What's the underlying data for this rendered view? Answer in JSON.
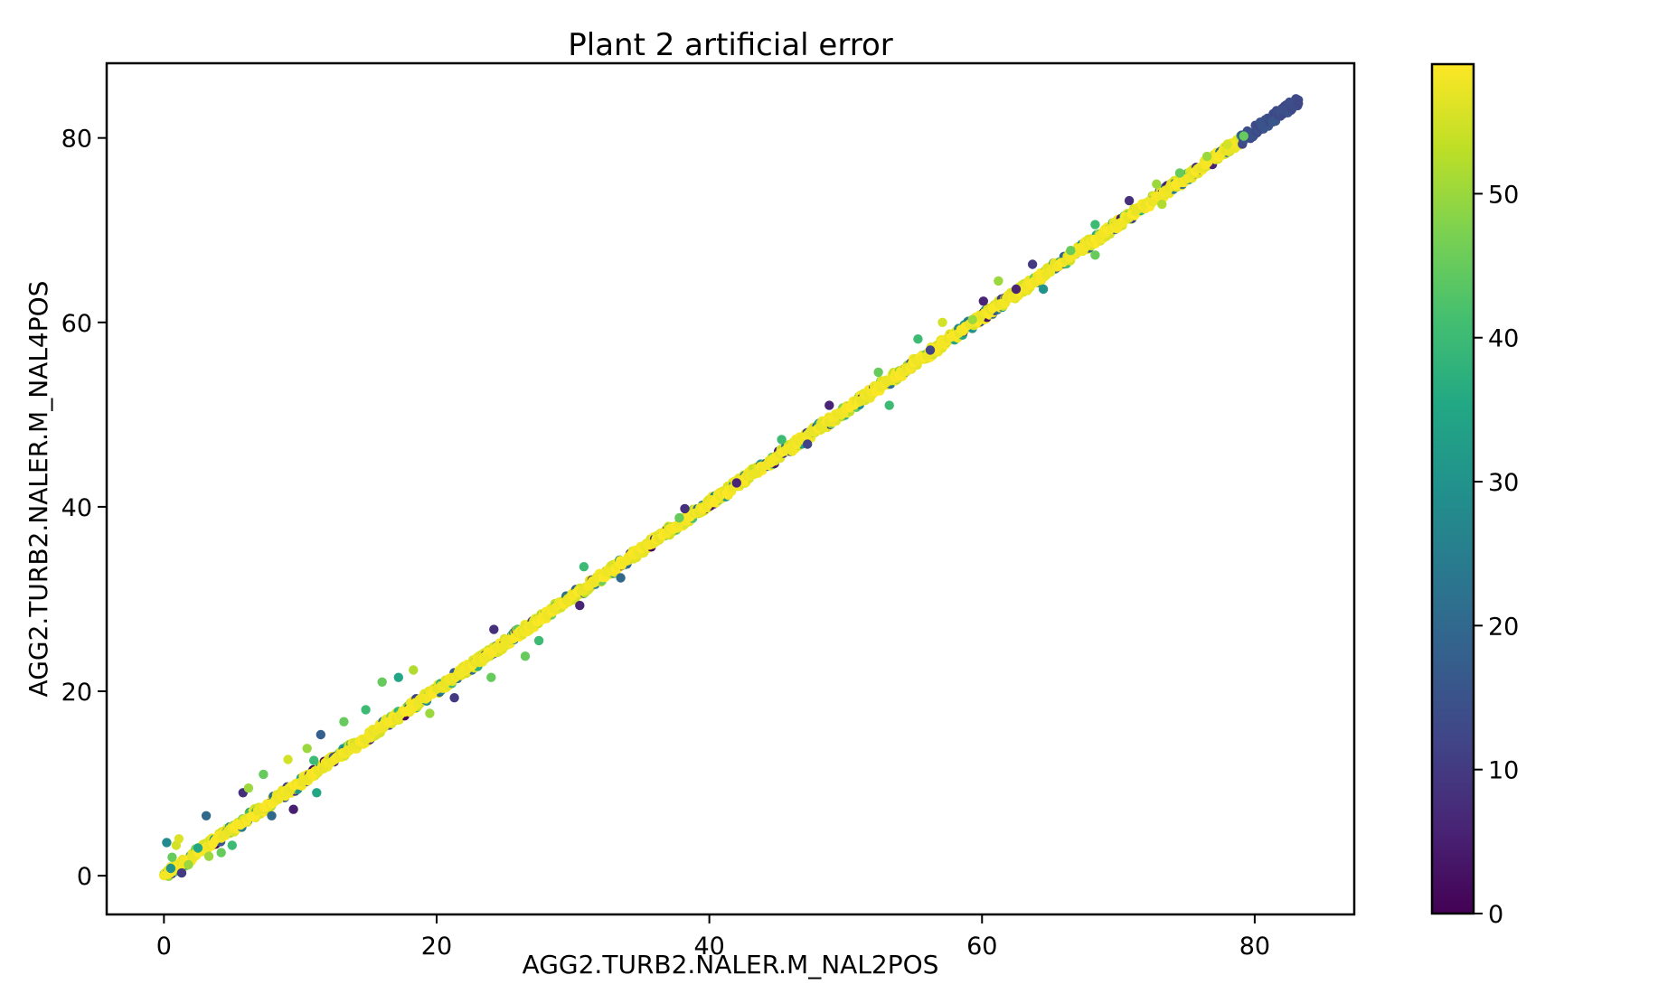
{
  "chart_data": {
    "type": "scatter",
    "title": "Plant 2 artificial error",
    "xlabel": "AGG2.TURB2.NALER.M_NAL2POS",
    "ylabel": "AGG2.TURB2.NALER.M_NAL4POS",
    "xlim": [
      -4.2,
      87.3
    ],
    "ylim": [
      -4.2,
      88.1
    ],
    "xticks": [
      0,
      20,
      40,
      60,
      80
    ],
    "yticks": [
      0,
      20,
      40,
      60,
      80
    ],
    "x_tick_labels": [
      "0",
      "20",
      "40",
      "60",
      "80"
    ],
    "y_tick_labels": [
      "0",
      "20",
      "40",
      "60",
      "80"
    ],
    "grid": false,
    "colormap": "viridis",
    "colorbar": {
      "range": [
        0,
        59
      ],
      "ticks": [
        0,
        10,
        20,
        30,
        40,
        50
      ],
      "tick_labels": [
        "0",
        "10",
        "20",
        "30",
        "40",
        "50"
      ]
    },
    "series": [
      {
        "trend": {
          "slope": 1.01,
          "x_range": [
            0,
            83.2
          ]
        },
        "points": [
          {
            "x": 0,
            "y": 0,
            "c": 58
          },
          {
            "x": 0.5,
            "y": 0.8,
            "c": 30
          },
          {
            "x": 0.2,
            "y": 3.6,
            "c": 28
          },
          {
            "x": 0.9,
            "y": 3.3,
            "c": 55
          },
          {
            "x": 1.1,
            "y": 4.0,
            "c": 56
          },
          {
            "x": 0.6,
            "y": 2.0,
            "c": 45
          },
          {
            "x": 1.3,
            "y": 0.3,
            "c": 10
          },
          {
            "x": 1.8,
            "y": 1.2,
            "c": 50
          },
          {
            "x": 2.5,
            "y": 3.0,
            "c": 35
          },
          {
            "x": 3.1,
            "y": 6.5,
            "c": 20
          },
          {
            "x": 3.3,
            "y": 2.1,
            "c": 50
          },
          {
            "x": 4.2,
            "y": 2.5,
            "c": 45
          },
          {
            "x": 5.0,
            "y": 3.3,
            "c": 40
          },
          {
            "x": 5.8,
            "y": 9.0,
            "c": 8
          },
          {
            "x": 6.2,
            "y": 9.5,
            "c": 50
          },
          {
            "x": 7.3,
            "y": 11.0,
            "c": 45
          },
          {
            "x": 7.9,
            "y": 6.5,
            "c": 20
          },
          {
            "x": 9.1,
            "y": 12.6,
            "c": 55
          },
          {
            "x": 9.5,
            "y": 7.2,
            "c": 5
          },
          {
            "x": 10.5,
            "y": 13.8,
            "c": 50
          },
          {
            "x": 11.0,
            "y": 12.5,
            "c": 40
          },
          {
            "x": 11.5,
            "y": 15.3,
            "c": 18
          },
          {
            "x": 11.2,
            "y": 9.0,
            "c": 35
          },
          {
            "x": 13.2,
            "y": 16.7,
            "c": 45
          },
          {
            "x": 14.8,
            "y": 18.0,
            "c": 40
          },
          {
            "x": 16.0,
            "y": 21.0,
            "c": 45
          },
          {
            "x": 17.2,
            "y": 21.5,
            "c": 35
          },
          {
            "x": 18.3,
            "y": 22.3,
            "c": 52
          },
          {
            "x": 19.5,
            "y": 17.6,
            "c": 50
          },
          {
            "x": 21.3,
            "y": 19.3,
            "c": 10
          },
          {
            "x": 24.0,
            "y": 21.5,
            "c": 45
          },
          {
            "x": 24.2,
            "y": 26.7,
            "c": 8
          },
          {
            "x": 26.5,
            "y": 23.8,
            "c": 45
          },
          {
            "x": 27.5,
            "y": 25.5,
            "c": 40
          },
          {
            "x": 30.8,
            "y": 33.5,
            "c": 40
          },
          {
            "x": 30.5,
            "y": 29.3,
            "c": 6
          },
          {
            "x": 33.5,
            "y": 32.3,
            "c": 20
          },
          {
            "x": 37.8,
            "y": 38.8,
            "c": 45
          },
          {
            "x": 38.2,
            "y": 39.8,
            "c": 8
          },
          {
            "x": 42.0,
            "y": 42.6,
            "c": 6
          },
          {
            "x": 45.3,
            "y": 47.3,
            "c": 40
          },
          {
            "x": 47.2,
            "y": 46.8,
            "c": 12
          },
          {
            "x": 48.8,
            "y": 51.0,
            "c": 6
          },
          {
            "x": 52.4,
            "y": 54.6,
            "c": 45
          },
          {
            "x": 53.2,
            "y": 51.0,
            "c": 40
          },
          {
            "x": 55.3,
            "y": 58.2,
            "c": 40
          },
          {
            "x": 56.2,
            "y": 57.0,
            "c": 12
          },
          {
            "x": 57.1,
            "y": 60.0,
            "c": 55
          },
          {
            "x": 59.3,
            "y": 60.3,
            "c": 50
          },
          {
            "x": 60.1,
            "y": 62.3,
            "c": 6
          },
          {
            "x": 61.2,
            "y": 64.5,
            "c": 50
          },
          {
            "x": 62.5,
            "y": 63.6,
            "c": 6
          },
          {
            "x": 63.7,
            "y": 66.3,
            "c": 10
          },
          {
            "x": 64.5,
            "y": 63.6,
            "c": 30
          },
          {
            "x": 66.5,
            "y": 67.8,
            "c": 45
          },
          {
            "x": 68.3,
            "y": 70.6,
            "c": 40
          },
          {
            "x": 68.3,
            "y": 67.3,
            "c": 45
          },
          {
            "x": 70.8,
            "y": 73.2,
            "c": 8
          },
          {
            "x": 72.8,
            "y": 75.0,
            "c": 50
          },
          {
            "x": 73.2,
            "y": 72.8,
            "c": 52
          },
          {
            "x": 74.5,
            "y": 76.2,
            "c": 45
          },
          {
            "x": 76.5,
            "y": 78.0,
            "c": 50
          },
          {
            "x": 78.0,
            "y": 79.3,
            "c": 55
          },
          {
            "x": 79.2,
            "y": 80.2,
            "c": 45
          },
          {
            "x": 80.5,
            "y": 81.4,
            "c": 15
          },
          {
            "x": 82.0,
            "y": 83.0,
            "c": 14
          },
          {
            "x": 83.2,
            "y": 84.1,
            "c": 13
          }
        ]
      }
    ]
  }
}
